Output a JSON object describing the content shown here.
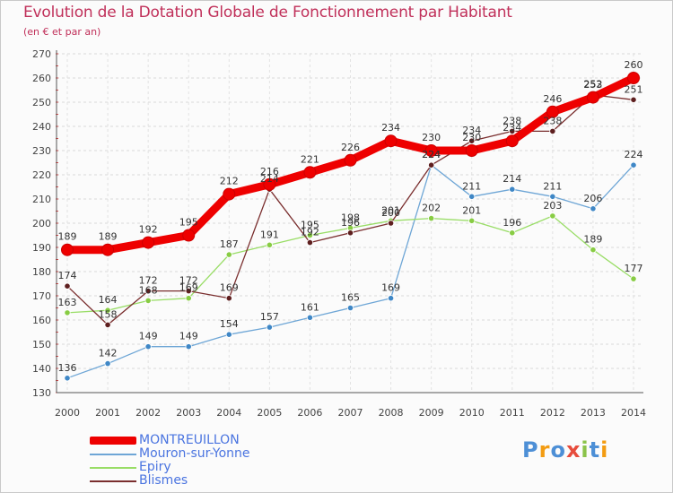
{
  "chart_data": {
    "type": "line",
    "title": "Evolution de la Dotation Globale de Fonctionnement par Habitant",
    "subtitle": "(en € et par an)",
    "xlabel": "",
    "ylabel": "",
    "categories": [
      "2000",
      "2001",
      "2002",
      "2003",
      "2004",
      "2005",
      "2006",
      "2007",
      "2008",
      "2009",
      "2010",
      "2011",
      "2012",
      "2013",
      "2014"
    ],
    "ylim": [
      130,
      270
    ],
    "yticks": [
      130,
      140,
      150,
      160,
      170,
      180,
      190,
      200,
      210,
      220,
      230,
      240,
      250,
      260,
      270
    ],
    "grid": true,
    "legend_position": "bottom-left",
    "series": [
      {
        "name": "MONTREUILLON",
        "color": "#ee0000",
        "marker_color": "#ee0000",
        "values": [
          189,
          189,
          192,
          195,
          212,
          216,
          221,
          226,
          234,
          230,
          230,
          234,
          246,
          252,
          260
        ]
      },
      {
        "name": "Mouron-sur-Yonne",
        "color": "#6ea6d6",
        "marker_color": "#3f87c6",
        "values": [
          136,
          142,
          149,
          149,
          154,
          157,
          161,
          165,
          169,
          224,
          211,
          214,
          211,
          206,
          224
        ]
      },
      {
        "name": "Epiry",
        "color": "#99dd66",
        "marker_color": "#88cc44",
        "values": [
          163,
          164,
          168,
          169,
          187,
          191,
          195,
          198,
          201,
          202,
          201,
          196,
          203,
          189,
          177
        ]
      },
      {
        "name": "Blismes",
        "color": "#7a2e2e",
        "marker_color": "#5e1f1f",
        "values": [
          174,
          158,
          172,
          172,
          169,
          214,
          192,
          196,
          200,
          224,
          234,
          238,
          238,
          253,
          251
        ]
      }
    ]
  },
  "logo": {
    "letters": [
      "P",
      "r",
      "o",
      "x",
      "i",
      "t",
      "i"
    ],
    "colors": [
      "#4d8fd6",
      "#f39c12",
      "#4d8fd6",
      "#e74c3c",
      "#8bc34a",
      "#4d8fd6",
      "#f39c12"
    ]
  }
}
